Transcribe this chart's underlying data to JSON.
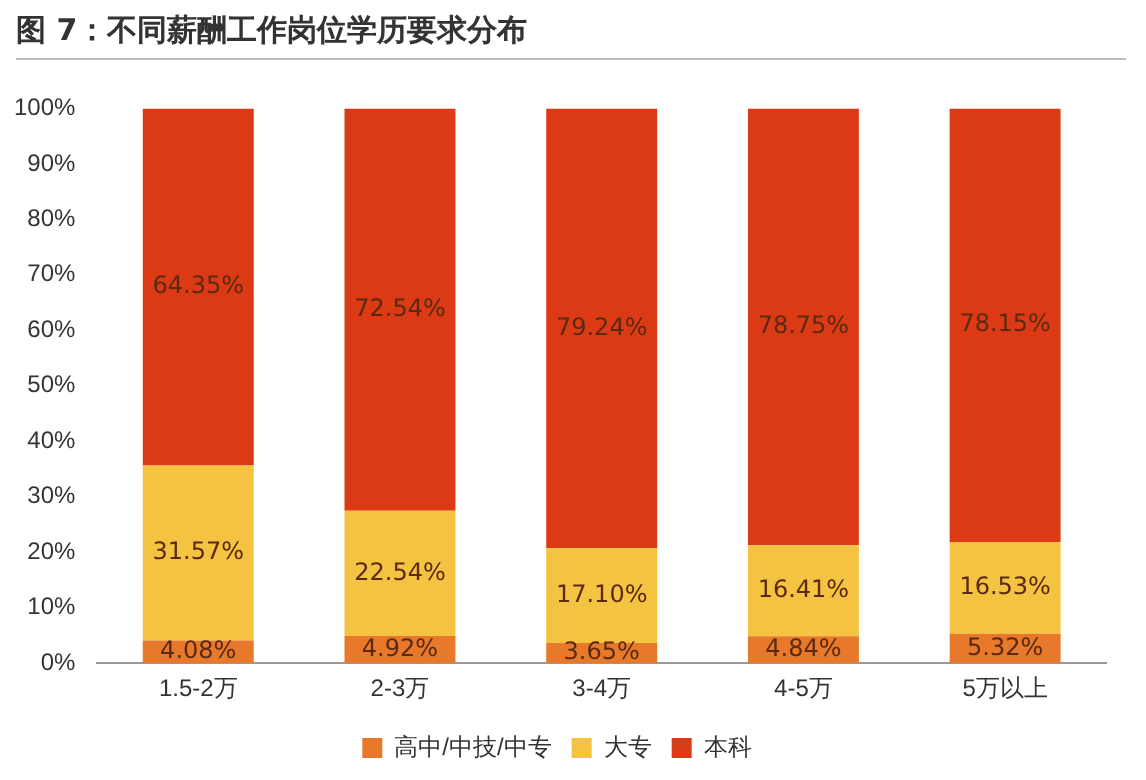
{
  "chart_data": {
    "type": "bar",
    "title": "图 7：不同薪酬工作岗位学历要求分布",
    "stacked": true,
    "legend": "bottom",
    "categories": [
      "1.5-2万",
      "2-3万",
      "3-4万",
      "4-5万",
      "5万以上"
    ],
    "ylim": [
      0,
      100
    ],
    "yticks": [
      {
        "value": 0,
        "label": "0%"
      },
      {
        "value": 10,
        "label": "10%"
      },
      {
        "value": 20,
        "label": "20%"
      },
      {
        "value": 30,
        "label": "30%"
      },
      {
        "value": 40,
        "label": "40%"
      },
      {
        "value": 50,
        "label": "50%"
      },
      {
        "value": 60,
        "label": "60%"
      },
      {
        "value": 70,
        "label": "70%"
      },
      {
        "value": 80,
        "label": "80%"
      },
      {
        "value": 90,
        "label": "90%"
      },
      {
        "value": 100,
        "label": "100%"
      }
    ],
    "series": [
      {
        "name": "高中/中技/中专",
        "color": "#e8792a",
        "values": [
          4.08,
          4.92,
          3.65,
          4.84,
          5.32
        ],
        "value_labels": [
          "4.08%",
          "4.92%",
          "3.65%",
          "4.84%",
          "5.32%"
        ]
      },
      {
        "name": "大专",
        "color": "#f5c342",
        "values": [
          31.57,
          22.54,
          17.1,
          16.41,
          16.53
        ],
        "value_labels": [
          "31.57%",
          "22.54%",
          "17.10%",
          "16.41%",
          "16.53%"
        ]
      },
      {
        "name": "本科",
        "color": "#dc3a14",
        "values": [
          64.35,
          72.54,
          79.24,
          78.75,
          78.15
        ],
        "value_labels": [
          "64.35%",
          "72.54%",
          "79.24%",
          "78.75%",
          "78.15%"
        ]
      }
    ]
  }
}
